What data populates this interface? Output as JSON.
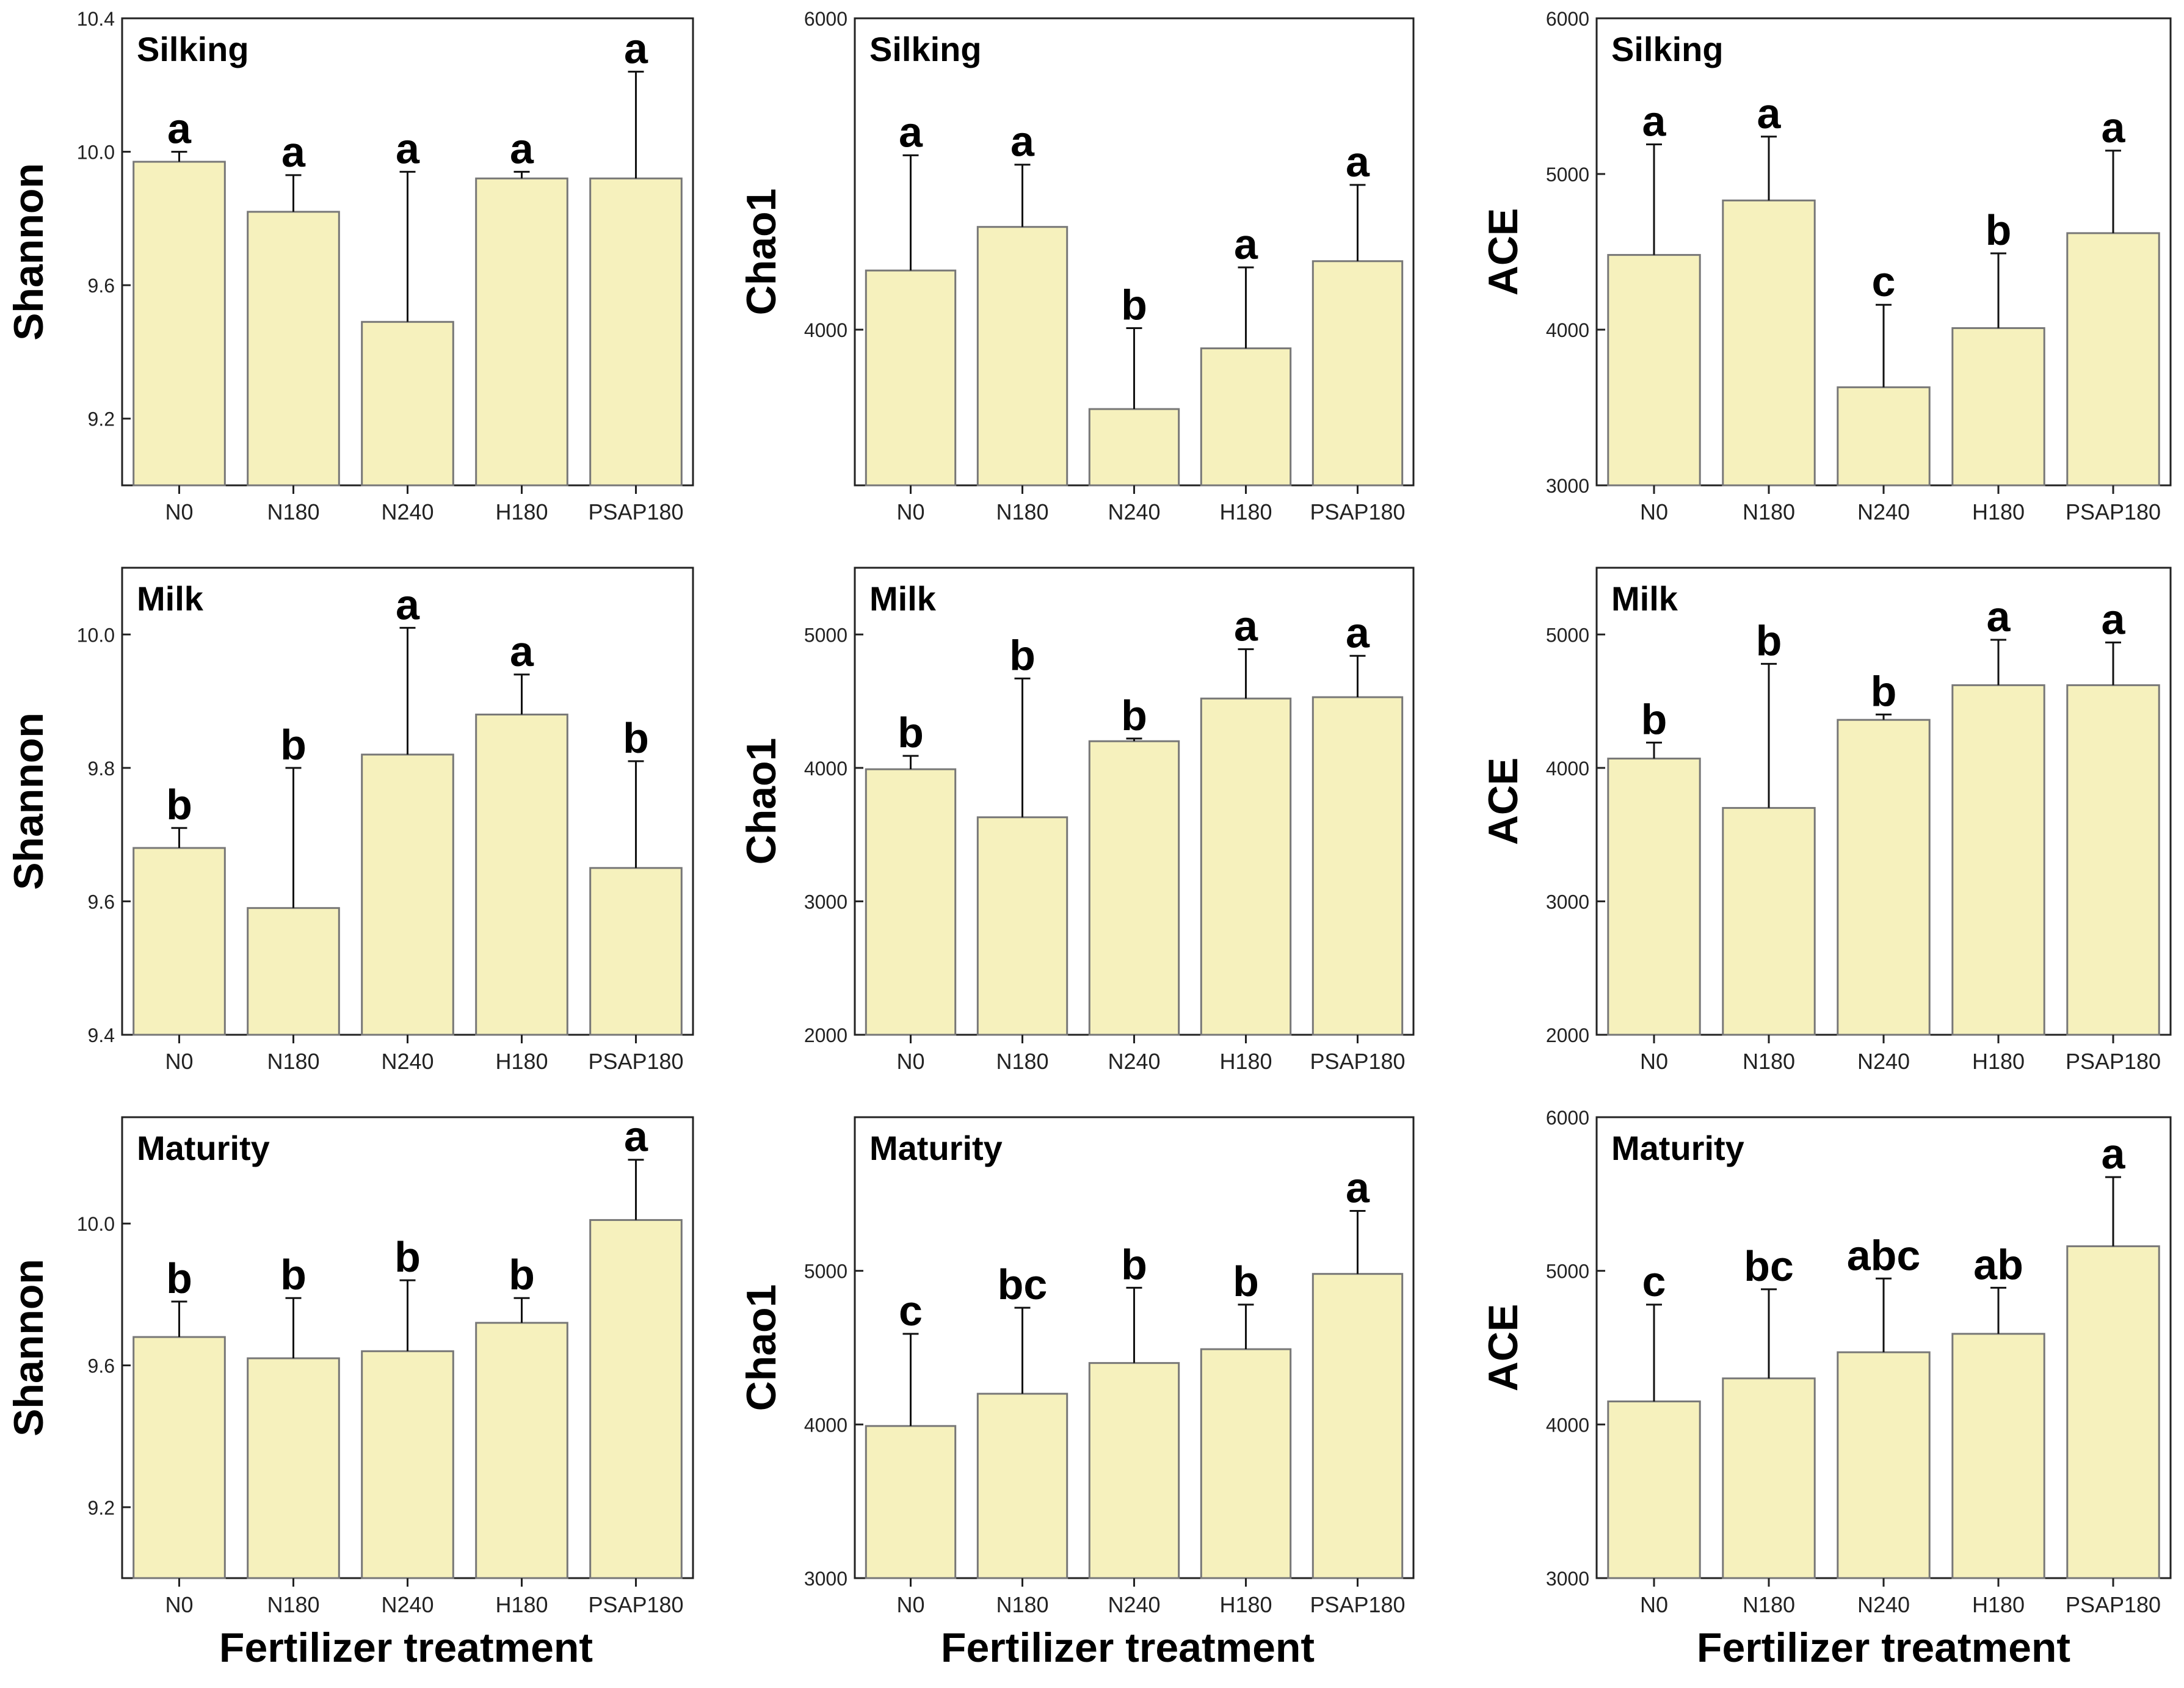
{
  "bar_color": "#f6f1bd",
  "bar_stroke": "#777777",
  "axis_color": "#222222",
  "x_axis_title": "Fertilizer treatment",
  "chart_data": [
    {
      "type": "bar",
      "title": "Silking",
      "ylabel": "Shannon",
      "categories": [
        "N0",
        "N180",
        "N240",
        "H180",
        "PSAP180"
      ],
      "values": [
        9.97,
        9.82,
        9.49,
        9.92,
        9.92
      ],
      "errors": [
        0.03,
        0.11,
        0.45,
        0.02,
        0.32
      ],
      "letters": [
        "a",
        "a",
        "a",
        "a",
        "a"
      ],
      "ylim": [
        9.0,
        10.4
      ],
      "yticks": [
        9.2,
        9.6,
        10.0,
        10.4
      ],
      "ytick_labels": [
        "9.2",
        "9.6",
        "10.0",
        "10.4"
      ]
    },
    {
      "type": "bar",
      "title": "Silking",
      "ylabel": "Chao1",
      "categories": [
        "N0",
        "N180",
        "N240",
        "H180",
        "PSAP180"
      ],
      "values": [
        4380,
        4660,
        3490,
        3880,
        4440
      ],
      "errors": [
        740,
        400,
        520,
        520,
        490
      ],
      "letters": [
        "a",
        "a",
        "b",
        "a",
        "a"
      ],
      "ylim": [
        3000,
        6000
      ],
      "yticks": [
        4000,
        6000
      ],
      "ytick_labels": [
        "4000",
        "6000"
      ]
    },
    {
      "type": "bar",
      "title": "Silking",
      "ylabel": "ACE",
      "categories": [
        "N0",
        "N180",
        "N240",
        "H180",
        "PSAP180"
      ],
      "values": [
        4480,
        4830,
        3630,
        4010,
        4620
      ],
      "errors": [
        710,
        410,
        530,
        480,
        530
      ],
      "letters": [
        "a",
        "a",
        "c",
        "b",
        "a"
      ],
      "ylim": [
        3000,
        6000
      ],
      "yticks": [
        3000,
        4000,
        5000,
        6000
      ],
      "ytick_labels": [
        "3000",
        "4000",
        "5000",
        "6000"
      ]
    },
    {
      "type": "bar",
      "title": "Milk",
      "ylabel": "Shannon",
      "categories": [
        "N0",
        "N180",
        "N240",
        "H180",
        "PSAP180"
      ],
      "values": [
        9.68,
        9.59,
        9.82,
        9.88,
        9.65
      ],
      "errors": [
        0.03,
        0.21,
        0.19,
        0.06,
        0.16
      ],
      "letters": [
        "b",
        "b",
        "a",
        "a",
        "b"
      ],
      "ylim": [
        9.4,
        10.1
      ],
      "yticks": [
        9.4,
        9.6,
        9.8,
        10.0
      ],
      "ytick_labels": [
        "9.4",
        "9.6",
        "9.8",
        "10.0"
      ]
    },
    {
      "type": "bar",
      "title": "Milk",
      "ylabel": "Chao1",
      "categories": [
        "N0",
        "N180",
        "N240",
        "H180",
        "PSAP180"
      ],
      "values": [
        3990,
        3630,
        4200,
        4520,
        4530
      ],
      "errors": [
        100,
        1040,
        20,
        370,
        310
      ],
      "letters": [
        "b",
        "b",
        "b",
        "a",
        "a"
      ],
      "ylim": [
        2000,
        5500
      ],
      "yticks": [
        2000,
        3000,
        4000,
        5000
      ],
      "ytick_labels": [
        "2000",
        "3000",
        "4000",
        "5000"
      ]
    },
    {
      "type": "bar",
      "title": "Milk",
      "ylabel": "ACE",
      "categories": [
        "N0",
        "N180",
        "N240",
        "H180",
        "PSAP180"
      ],
      "values": [
        4070,
        3700,
        4360,
        4620,
        4620
      ],
      "errors": [
        120,
        1080,
        40,
        340,
        320
      ],
      "letters": [
        "b",
        "b",
        "b",
        "a",
        "a"
      ],
      "ylim": [
        2000,
        5500
      ],
      "yticks": [
        2000,
        3000,
        4000,
        5000
      ],
      "ytick_labels": [
        "2000",
        "3000",
        "4000",
        "5000"
      ]
    },
    {
      "type": "bar",
      "title": "Maturity",
      "ylabel": "Shannon",
      "categories": [
        "N0",
        "N180",
        "N240",
        "H180",
        "PSAP180"
      ],
      "values": [
        9.68,
        9.62,
        9.64,
        9.72,
        10.01
      ],
      "errors": [
        0.1,
        0.17,
        0.2,
        0.07,
        0.17
      ],
      "letters": [
        "b",
        "b",
        "b",
        "b",
        "a"
      ],
      "ylim": [
        9.0,
        10.3
      ],
      "yticks": [
        9.2,
        9.6,
        10.0
      ],
      "ytick_labels": [
        "9.2",
        "9.6",
        "10.0"
      ]
    },
    {
      "type": "bar",
      "title": "Maturity",
      "ylabel": "Chao1",
      "categories": [
        "N0",
        "N180",
        "N240",
        "H180",
        "PSAP180"
      ],
      "values": [
        3990,
        4200,
        4400,
        4490,
        4980
      ],
      "errors": [
        600,
        560,
        490,
        290,
        410
      ],
      "letters": [
        "c",
        "bc",
        "b",
        "b",
        "a"
      ],
      "ylim": [
        3000,
        6000
      ],
      "yticks": [
        3000,
        4000,
        5000
      ],
      "ytick_labels": [
        "3000",
        "4000",
        "5000"
      ]
    },
    {
      "type": "bar",
      "title": "Maturity",
      "ylabel": "ACE",
      "categories": [
        "N0",
        "N180",
        "N240",
        "H180",
        "PSAP180"
      ],
      "values": [
        4150,
        4300,
        4470,
        4590,
        5160
      ],
      "errors": [
        630,
        580,
        480,
        300,
        450
      ],
      "letters": [
        "c",
        "bc",
        "abc",
        "ab",
        "a"
      ],
      "ylim": [
        3000,
        6000
      ],
      "yticks": [
        3000,
        4000,
        5000,
        6000
      ],
      "ytick_labels": [
        "3000",
        "4000",
        "5000",
        "6000"
      ]
    }
  ]
}
